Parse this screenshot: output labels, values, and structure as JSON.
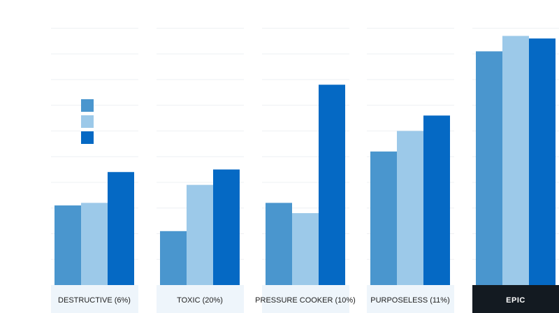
{
  "chart_data": {
    "type": "bar",
    "categories": [
      "DESTRUCTIVE (6%)",
      "TOXIC (20%)",
      "PRESSURE COOKER (10%)",
      "PURPOSELESS (11%)",
      "EPIC"
    ],
    "highlight_category": "EPIC",
    "series": [
      {
        "color": "#4a96ce",
        "values": [
          31,
          21,
          32,
          52,
          91
        ]
      },
      {
        "color": "#9cc9e9",
        "values": [
          32,
          39,
          28,
          60,
          97
        ]
      },
      {
        "color": "#0569c4",
        "values": [
          44,
          45,
          78,
          66,
          96
        ]
      }
    ],
    "ylim": [
      0,
      105
    ],
    "grid": true,
    "legend_position": "left",
    "colors": {
      "label_band": "#eef5fb",
      "highlight_band": "#131a21",
      "grid": "#eef0f3"
    }
  }
}
